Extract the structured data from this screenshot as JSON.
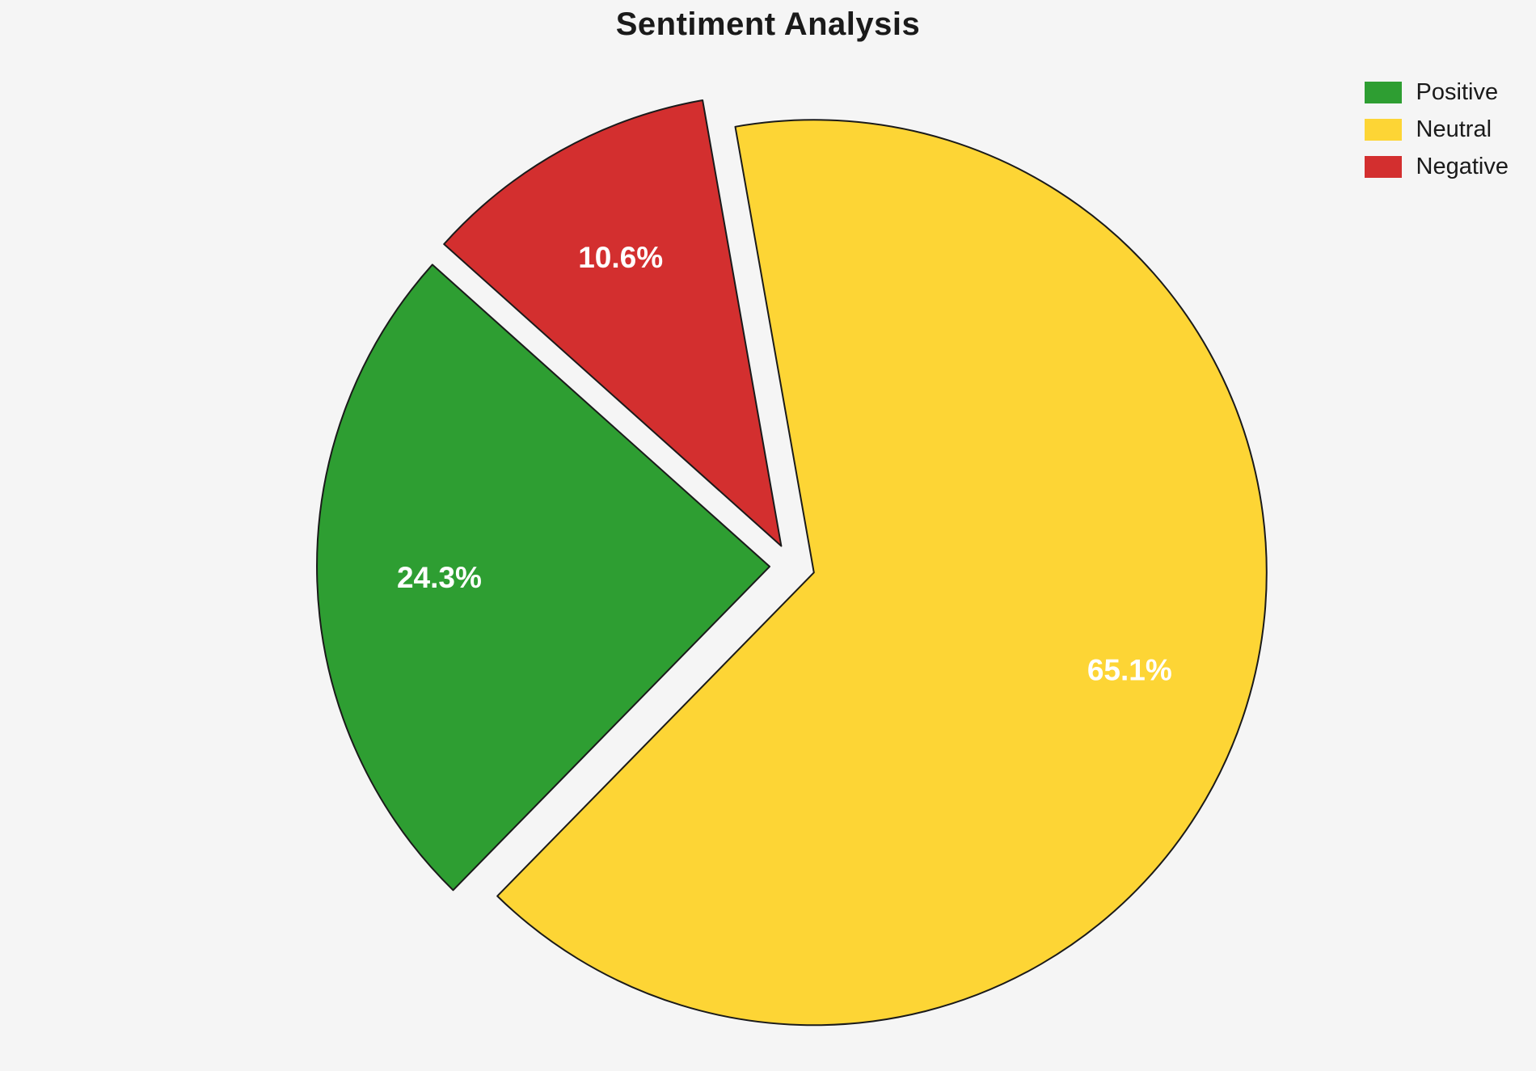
{
  "title": "Sentiment Analysis",
  "chart_data": {
    "type": "pie",
    "title": "Sentiment Analysis",
    "slices": [
      {
        "label": "Positive",
        "value": 24.3,
        "pct_label": "24.3%",
        "color": "#2e9e32"
      },
      {
        "label": "Neutral",
        "value": 65.1,
        "pct_label": "65.1%",
        "color": "#fdd535"
      },
      {
        "label": "Negative",
        "value": 10.6,
        "pct_label": "10.6%",
        "color": "#d32f2f"
      }
    ],
    "draw_order": [
      1,
      0,
      2
    ],
    "start_angle_deg": 100,
    "direction": "clockwise",
    "explode": 0.05,
    "label_color": "#ffffff",
    "edge_color": "#1a1a1a",
    "legend_position": "top-right",
    "legend_entries": [
      "Positive",
      "Neutral",
      "Negative"
    ],
    "background": "#f5f5f5"
  }
}
